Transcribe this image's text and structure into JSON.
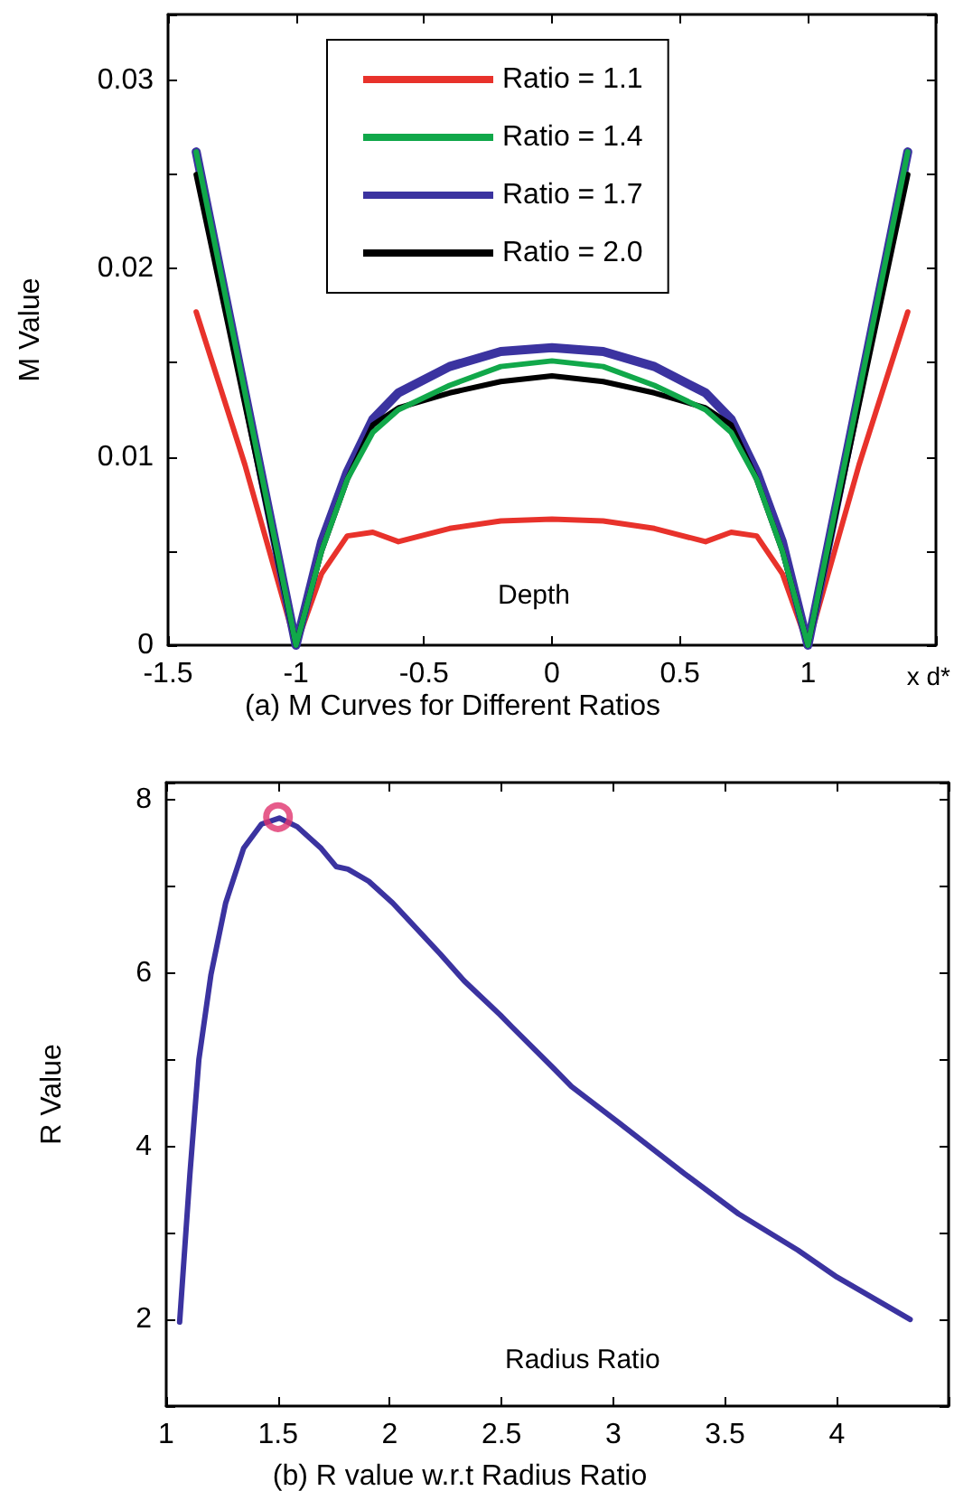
{
  "chart_data": [
    {
      "type": "line",
      "title": "(a) M Curves for Different Ratios",
      "xlabel": "x d*",
      "ylabel": "M Value",
      "annotations": [
        "Depth"
      ],
      "legend": "top",
      "grid": false,
      "marker": "none",
      "line_style": "solid",
      "xlim": [
        -1.5,
        1.5
      ],
      "ylim": [
        0,
        0.0335
      ],
      "xticks": [
        -1.5,
        -1,
        -0.5,
        0,
        0.5,
        1
      ],
      "yticks": [
        0,
        {
          "value": 0.005,
          "label": null
        },
        0.01,
        {
          "value": 0.015,
          "label": null
        },
        0.02,
        {
          "value": 0.025,
          "label": null
        },
        0.03
      ],
      "series": [
        {
          "name": "Ratio = 1.1",
          "color": "#e8322b",
          "x": [
            -1.39,
            -1.2,
            -1,
            -0.9,
            -0.8,
            -0.7,
            -0.6,
            -0.4,
            -0.2,
            0,
            0.2,
            0.4,
            0.6,
            0.7,
            0.8,
            0.9,
            1,
            1.2,
            1.39
          ],
          "values": [
            0.0177,
            0.0096,
            0,
            0.0038,
            0.0058,
            0.006,
            0.0055,
            0.0062,
            0.0066,
            0.0067,
            0.0066,
            0.0062,
            0.0055,
            0.006,
            0.0058,
            0.0038,
            0,
            0.0096,
            0.0177
          ]
        },
        {
          "name": "Ratio = 1.4",
          "color": "#11a84a",
          "x": [
            -1.39,
            -1,
            -0.9,
            -0.8,
            -0.7,
            -0.6,
            -0.4,
            -0.2,
            0,
            0.2,
            0.4,
            0.6,
            0.7,
            0.8,
            0.9,
            1,
            1.39
          ],
          "values": [
            0.0262,
            0,
            0.005,
            0.0088,
            0.0113,
            0.0125,
            0.0138,
            0.0148,
            0.0151,
            0.0148,
            0.0138,
            0.0125,
            0.0113,
            0.0088,
            0.005,
            0,
            0.0262
          ]
        },
        {
          "name": "Ratio = 1.7",
          "color": "#3b33a0",
          "x": [
            -1.39,
            -1,
            -0.9,
            -0.8,
            -0.7,
            -0.6,
            -0.4,
            -0.2,
            0,
            0.2,
            0.4,
            0.6,
            0.7,
            0.8,
            0.9,
            1,
            1.39
          ],
          "values": [
            0.0262,
            0,
            0.0055,
            0.0092,
            0.012,
            0.0134,
            0.0148,
            0.0156,
            0.0158,
            0.0156,
            0.0148,
            0.0134,
            0.012,
            0.0092,
            0.0055,
            0,
            0.0262
          ]
        },
        {
          "name": "Ratio = 2.0",
          "color": "#000000",
          "x": [
            -1.39,
            -1,
            -0.9,
            -0.8,
            -0.7,
            -0.6,
            -0.4,
            -0.2,
            0,
            0.2,
            0.4,
            0.6,
            0.7,
            0.8,
            0.9,
            1,
            1.39
          ],
          "values": [
            0.025,
            0,
            0.005,
            0.0088,
            0.0117,
            0.0126,
            0.0134,
            0.014,
            0.0143,
            0.014,
            0.0134,
            0.0126,
            0.0117,
            0.0088,
            0.005,
            0,
            0.025
          ]
        }
      ]
    },
    {
      "type": "line",
      "title": "(b) R value w.r.t Radius Ratio",
      "ylabel": "R Value",
      "annotations": [
        "Radius Ratio"
      ],
      "legend": false,
      "grid": false,
      "marker": "none",
      "line_style": "solid",
      "xlim": [
        1,
        4.5
      ],
      "ylim": [
        1,
        8.2
      ],
      "xticks": [
        1,
        1.5,
        2,
        2.5,
        3,
        3.5,
        4
      ],
      "yticks": [
        2,
        {
          "value": 3,
          "label": null
        },
        4,
        {
          "value": 5,
          "label": null
        },
        6,
        {
          "value": 7,
          "label": null
        },
        8
      ],
      "series": [
        {
          "color": "#3b33a0",
          "x": [
            1.06,
            1.106,
            1.146,
            1.2,
            1.266,
            1.346,
            1.426,
            1.506,
            1.586,
            1.693,
            1.76,
            1.813,
            1.906,
            2.013,
            2.226,
            2.333,
            2.493,
            2.546,
            2.733,
            2.813,
            3.026,
            3.32,
            3.56,
            3.826,
            4.0,
            4.328
          ],
          "values": [
            1.97,
            3.68,
            5.0,
            5.98,
            6.81,
            7.44,
            7.72,
            7.79,
            7.69,
            7.44,
            7.23,
            7.2,
            7.06,
            6.81,
            6.22,
            5.91,
            5.52,
            5.38,
            4.9,
            4.69,
            4.27,
            3.68,
            3.22,
            2.8,
            2.49,
            2.0
          ]
        },
        {
          "type": "scatter",
          "marker": "circle",
          "color": "#e0336e",
          "x": [
            1.5
          ],
          "values": [
            7.8
          ]
        }
      ]
    }
  ]
}
